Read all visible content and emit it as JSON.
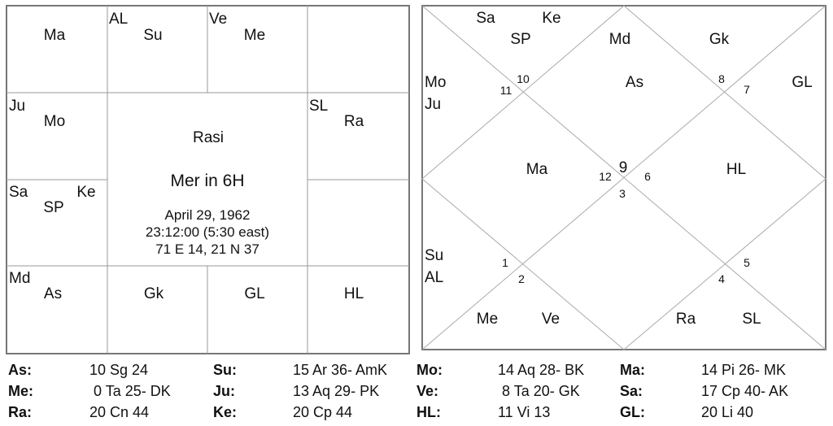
{
  "rasi_chart": {
    "houses": {
      "pi": [
        "Ma"
      ],
      "ar": [
        "AL",
        "Su"
      ],
      "ta": [
        "Ve",
        "Me"
      ],
      "ge": [],
      "aq": [
        "Ju",
        "Mo"
      ],
      "cn": [
        "SL",
        "Ra"
      ],
      "cp": [
        "Sa",
        "SP",
        "Ke"
      ],
      "le": [],
      "sg": [
        "Md",
        "As"
      ],
      "sc": [
        "Gk"
      ],
      "li": [
        "GL"
      ],
      "vi": [
        "HL"
      ]
    },
    "center": {
      "title": "Rasi",
      "subtitle": "Mer in 6H",
      "date": "April 29, 1962",
      "time": "23:12:00 (5:30 east)",
      "location": "71 E 14, 21 N 37"
    }
  },
  "north_chart": {
    "labels": {
      "h10a": "Sa",
      "h10b": "Ke",
      "h10c": "SP",
      "h9": "Md",
      "h8": "Gk",
      "h11a": "Mo",
      "h11b": "Ju",
      "h1": "As",
      "h7": "GL",
      "h12": "Ma",
      "h6": "HL",
      "h2a": "Su",
      "h2b": "AL",
      "h3a": "Me",
      "h3b": "Ve",
      "h4a": "Ra",
      "h4b": "SL"
    },
    "sign_numbers": [
      "1",
      "2",
      "3",
      "4",
      "5",
      "6",
      "7",
      "8",
      "9",
      "10",
      "11",
      "12"
    ]
  },
  "positions": [
    [
      {
        "k": "As:",
        "v": "10 Sg 24"
      },
      {
        "k": "Su:",
        "v": "15 Ar 36- AmK"
      },
      {
        "k": "Mo:",
        "v": "14 Aq 28- BK"
      },
      {
        "k": "Ma:",
        "v": "14 Pi 26- MK"
      }
    ],
    [
      {
        "k": "Me:",
        "v": " 0 Ta 25- DK"
      },
      {
        "k": "Ju:",
        "v": "13 Aq 29- PK"
      },
      {
        "k": "Ve:",
        "v": " 8 Ta 20- GK"
      },
      {
        "k": "Sa:",
        "v": "17 Cp 40- AK"
      }
    ],
    [
      {
        "k": "Ra:",
        "v": "20 Cn 44"
      },
      {
        "k": "Ke:",
        "v": "20 Cp 44"
      },
      {
        "k": "HL:",
        "v": "11 Vi 13"
      },
      {
        "k": "GL:",
        "v": "20 Li 40"
      }
    ]
  ]
}
